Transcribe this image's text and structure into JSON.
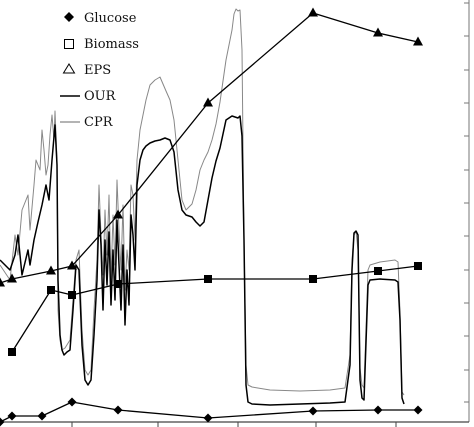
{
  "chart_data": {
    "type": "line",
    "title": "",
    "xlabel": "",
    "ylabel": "",
    "grid": false,
    "legend_position": "top-left",
    "x_range": [
      0,
      474
    ],
    "y_range": [
      0,
      427
    ],
    "right_axis_ticks": [
      20,
      52,
      86,
      119,
      152,
      186,
      219,
      252,
      286,
      319,
      352,
      386,
      419
    ],
    "bottom_axis_ticks": [
      72,
      158,
      238,
      316,
      396
    ],
    "legend": [
      {
        "label": "Glucose",
        "marker": "diamond"
      },
      {
        "label": "Biomass",
        "marker": "square-open"
      },
      {
        "label": "EPS",
        "marker": "triangle-open"
      },
      {
        "label": "OUR",
        "marker": "line-dark"
      },
      {
        "label": "CPR",
        "marker": "line-light"
      }
    ],
    "series": [
      {
        "name": "Glucose",
        "marker": "diamond",
        "color": "#000000",
        "points": [
          [
            0,
            0
          ],
          [
            12,
            6
          ],
          [
            42,
            6
          ],
          [
            72,
            20
          ],
          [
            118,
            12
          ],
          [
            208,
            4
          ],
          [
            313,
            11
          ],
          [
            378,
            12
          ],
          [
            418,
            12
          ]
        ]
      },
      {
        "name": "Biomass",
        "marker": "square",
        "color": "#000000",
        "points": [
          [
            12,
            70
          ],
          [
            51,
            132
          ],
          [
            72,
            127
          ],
          [
            118,
            138
          ],
          [
            208,
            143
          ],
          [
            313,
            143
          ],
          [
            378,
            151
          ],
          [
            418,
            156
          ]
        ]
      },
      {
        "name": "EPS",
        "marker": "triangle",
        "color": "#000000",
        "points": [
          [
            0,
            139
          ],
          [
            12,
            143
          ],
          [
            51,
            151
          ],
          [
            72,
            156
          ],
          [
            118,
            207
          ],
          [
            208,
            319
          ],
          [
            313,
            409
          ],
          [
            378,
            389
          ],
          [
            418,
            380
          ]
        ]
      },
      {
        "name": "OUR",
        "color": "#000000",
        "points": [
          [
            0,
            162
          ],
          [
            10,
            152
          ],
          [
            15,
            167
          ],
          [
            18,
            187
          ],
          [
            22,
            147
          ],
          [
            28,
            172
          ],
          [
            30,
            157
          ],
          [
            34,
            182
          ],
          [
            38,
            200
          ],
          [
            42,
            217
          ],
          [
            46,
            237
          ],
          [
            49,
            222
          ],
          [
            52,
            262
          ],
          [
            55,
            297
          ],
          [
            57,
            257
          ],
          [
            58,
            142
          ],
          [
            60,
            87
          ],
          [
            62,
            72
          ],
          [
            64,
            67
          ],
          [
            67,
            70
          ],
          [
            70,
            72
          ],
          [
            73,
            112
          ],
          [
            76,
            157
          ],
          [
            79,
            152
          ],
          [
            82,
            77
          ],
          [
            85,
            42
          ],
          [
            88,
            37
          ],
          [
            91,
            42
          ],
          [
            94,
            87
          ],
          [
            97,
            142
          ],
          [
            99,
            212
          ],
          [
            101,
            177
          ],
          [
            103,
            112
          ],
          [
            105,
            182
          ],
          [
            107,
            137
          ],
          [
            109,
            190
          ],
          [
            111,
            117
          ],
          [
            113,
            172
          ],
          [
            115,
            122
          ],
          [
            117,
            202
          ],
          [
            119,
            157
          ],
          [
            121,
            112
          ],
          [
            123,
            177
          ],
          [
            125,
            97
          ],
          [
            127,
            152
          ],
          [
            129,
            117
          ],
          [
            131,
            207
          ],
          [
            133,
            187
          ],
          [
            135,
            152
          ],
          [
            137,
            237
          ],
          [
            140,
            262
          ],
          [
            143,
            272
          ],
          [
            146,
            276
          ],
          [
            150,
            279
          ],
          [
            155,
            281
          ],
          [
            160,
            282
          ],
          [
            165,
            284
          ],
          [
            170,
            282
          ],
          [
            174,
            270
          ],
          [
            178,
            232
          ],
          [
            182,
            212
          ],
          [
            186,
            207
          ],
          [
            192,
            205
          ],
          [
            196,
            200
          ],
          [
            200,
            196
          ],
          [
            204,
            200
          ],
          [
            208,
            222
          ],
          [
            212,
            244
          ],
          [
            216,
            261
          ],
          [
            220,
            274
          ],
          [
            226,
            302
          ],
          [
            232,
            306
          ],
          [
            238,
            304
          ],
          [
            240,
            306
          ],
          [
            242,
            286
          ],
          [
            244,
            182
          ],
          [
            246,
            37
          ],
          [
            248,
            20
          ],
          [
            252,
            18
          ],
          [
            270,
            17
          ],
          [
            300,
            18
          ],
          [
            330,
            19
          ],
          [
            345,
            20
          ],
          [
            350,
            57
          ],
          [
            352,
            152
          ],
          [
            354,
            189
          ],
          [
            356,
            191
          ],
          [
            358,
            187
          ],
          [
            360,
            42
          ],
          [
            362,
            24
          ],
          [
            364,
            22
          ],
          [
            368,
            137
          ],
          [
            370,
            142
          ],
          [
            380,
            143
          ],
          [
            395,
            142
          ],
          [
            398,
            140
          ],
          [
            400,
            102
          ],
          [
            402,
            24
          ],
          [
            404,
            18
          ]
        ]
      },
      {
        "name": "CPR",
        "color": "#888888",
        "points": [
          [
            0,
            157
          ],
          [
            10,
            142
          ],
          [
            15,
            187
          ],
          [
            18,
            167
          ],
          [
            22,
            212
          ],
          [
            28,
            227
          ],
          [
            30,
            192
          ],
          [
            34,
            237
          ],
          [
            36,
            262
          ],
          [
            40,
            252
          ],
          [
            42,
            292
          ],
          [
            44,
            272
          ],
          [
            46,
            247
          ],
          [
            48,
            257
          ],
          [
            50,
            287
          ],
          [
            52,
            307
          ],
          [
            54,
            282
          ],
          [
            55,
            311
          ],
          [
            57,
            262
          ],
          [
            58,
            112
          ],
          [
            60,
            82
          ],
          [
            62,
            72
          ],
          [
            65,
            74
          ],
          [
            70,
            82
          ],
          [
            73,
            122
          ],
          [
            76,
            162
          ],
          [
            79,
            172
          ],
          [
            82,
            92
          ],
          [
            85,
            52
          ],
          [
            88,
            47
          ],
          [
            91,
            52
          ],
          [
            94,
            112
          ],
          [
            97,
            162
          ],
          [
            99,
            237
          ],
          [
            101,
            187
          ],
          [
            103,
            147
          ],
          [
            105,
            212
          ],
          [
            107,
            167
          ],
          [
            109,
            227
          ],
          [
            111,
            142
          ],
          [
            113,
            207
          ],
          [
            115,
            157
          ],
          [
            117,
            242
          ],
          [
            119,
            192
          ],
          [
            121,
            152
          ],
          [
            123,
            217
          ],
          [
            125,
            132
          ],
          [
            127,
            172
          ],
          [
            129,
            152
          ],
          [
            131,
            237
          ],
          [
            133,
            227
          ],
          [
            135,
            182
          ],
          [
            137,
            262
          ],
          [
            140,
            292
          ],
          [
            143,
            307
          ],
          [
            146,
            322
          ],
          [
            150,
            337
          ],
          [
            155,
            342
          ],
          [
            160,
            345
          ],
          [
            166,
            331
          ],
          [
            170,
            322
          ],
          [
            174,
            302
          ],
          [
            178,
            262
          ],
          [
            182,
            222
          ],
          [
            186,
            212
          ],
          [
            192,
            218
          ],
          [
            196,
            232
          ],
          [
            200,
            252
          ],
          [
            204,
            262
          ],
          [
            208,
            270
          ],
          [
            212,
            282
          ],
          [
            216,
            298
          ],
          [
            220,
            320
          ],
          [
            226,
            362
          ],
          [
            232,
            392
          ],
          [
            234,
            408
          ],
          [
            236,
            413
          ],
          [
            238,
            411
          ],
          [
            240,
            412
          ],
          [
            242,
            372
          ],
          [
            244,
            182
          ],
          [
            246,
            57
          ],
          [
            248,
            37
          ],
          [
            252,
            35
          ],
          [
            270,
            32
          ],
          [
            300,
            31
          ],
          [
            330,
            32
          ],
          [
            345,
            34
          ],
          [
            350,
            67
          ],
          [
            352,
            162
          ],
          [
            354,
            187
          ],
          [
            356,
            191
          ],
          [
            358,
            172
          ],
          [
            360,
            54
          ],
          [
            362,
            37
          ],
          [
            364,
            34
          ],
          [
            368,
            152
          ],
          [
            370,
            157
          ],
          [
            380,
            160
          ],
          [
            395,
            162
          ],
          [
            398,
            160
          ],
          [
            400,
            110
          ],
          [
            402,
            30
          ],
          [
            404,
            27
          ]
        ]
      }
    ]
  }
}
